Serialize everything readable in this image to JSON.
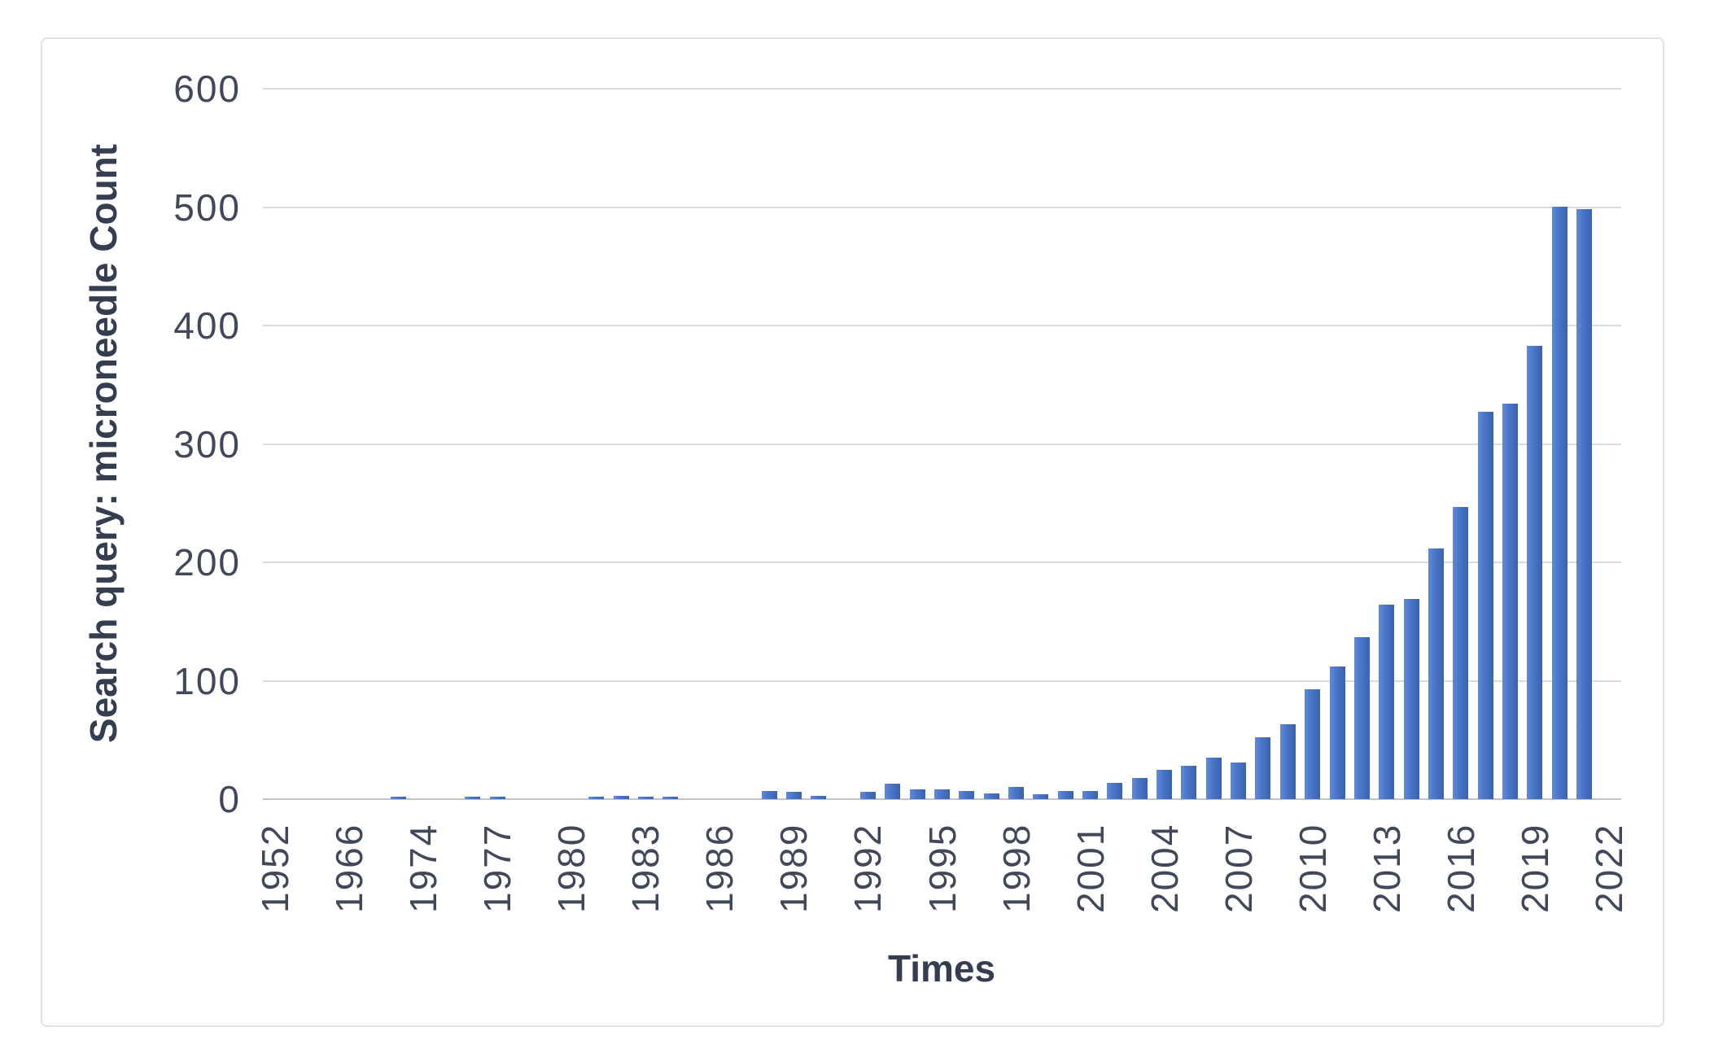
{
  "page": {
    "background": "#ffffff"
  },
  "card": {
    "border_color": "#e0e1e6",
    "background": "#ffffff"
  },
  "chart_data": {
    "type": "bar",
    "title": "",
    "xlabel": "Times",
    "ylabel": "Search query: microneedle Count",
    "ylim": [
      0,
      600
    ],
    "yticks": [
      0,
      100,
      200,
      300,
      400,
      500,
      600
    ],
    "grid": "horizontal",
    "legend": null,
    "x_label_every": 3,
    "bar_color": "#4974c8",
    "gridline_color": "#dbdbdb",
    "axisline_color": "#c4c4c6",
    "tick_label_color": "#41485a",
    "title_color": "#353d50",
    "categories": [
      "1952",
      "",
      "",
      "1966",
      "",
      "",
      "1974",
      "1975",
      "1976",
      "1977",
      "1978",
      "1979",
      "1980",
      "1981",
      "1982",
      "1983",
      "1984",
      "1985",
      "1986",
      "1987",
      "1988",
      "1989",
      "1990",
      "1991",
      "1992",
      "1993",
      "1994",
      "1995",
      "1996",
      "1997",
      "1998",
      "1999",
      "2000",
      "2001",
      "2002",
      "2003",
      "2004",
      "2005",
      "2006",
      "2007",
      "2008",
      "2009",
      "2010",
      "2011",
      "2012",
      "2013",
      "2014",
      "2015",
      "2016",
      "2017",
      "2018",
      "2019",
      "2020",
      "2021",
      "2022"
    ],
    "values": [
      null,
      null,
      null,
      null,
      null,
      2,
      null,
      null,
      2,
      2,
      null,
      null,
      null,
      2,
      3,
      2,
      2,
      null,
      null,
      null,
      7,
      6,
      3,
      null,
      6,
      13,
      8,
      8,
      7,
      5,
      10,
      4,
      7,
      7,
      14,
      18,
      25,
      28,
      35,
      31,
      52,
      63,
      93,
      112,
      137,
      164,
      169,
      212,
      247,
      327,
      334,
      383,
      500,
      498,
      null
    ]
  }
}
